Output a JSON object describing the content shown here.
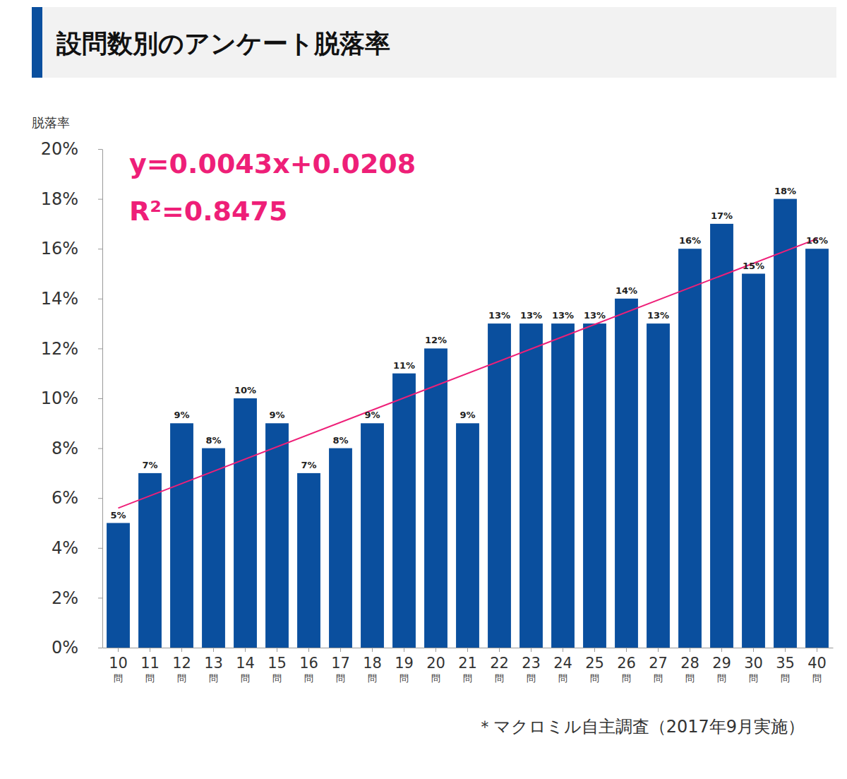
{
  "chart_data": {
    "type": "bar",
    "title": "設問数別のアンケート脱落率",
    "ylabel": "脱落率",
    "categories": [
      "10問",
      "11問",
      "12問",
      "13問",
      "14問",
      "15問",
      "16問",
      "17問",
      "18問",
      "19問",
      "20問",
      "21問",
      "22問",
      "23問",
      "24問",
      "25問",
      "26問",
      "27問",
      "28問",
      "29問",
      "30問",
      "35問",
      "40問"
    ],
    "values": [
      5,
      7,
      9,
      8,
      10,
      9,
      7,
      8,
      9,
      11,
      12,
      9,
      13,
      13,
      13,
      13,
      14,
      13,
      16,
      17,
      15,
      18,
      16
    ],
    "value_labels": [
      "5%",
      "7%",
      "9%",
      "8%",
      "10%",
      "9%",
      "7%",
      "8%",
      "9%",
      "11%",
      "12%",
      "9%",
      "13%",
      "13%",
      "13%",
      "13%",
      "14%",
      "13%",
      "16%",
      "17%",
      "15%",
      "18%",
      "16%"
    ],
    "color": "#0a4f9e",
    "data_labels": true,
    "grid": false,
    "ylim": [
      0,
      20
    ],
    "yticks": [
      {
        "value": 0,
        "label": "0%"
      },
      {
        "value": 2,
        "label": "2%"
      },
      {
        "value": 4,
        "label": "4%"
      },
      {
        "value": 6,
        "label": "6%"
      },
      {
        "value": 8,
        "label": "8%"
      },
      {
        "value": 10,
        "label": "10%"
      },
      {
        "value": 12,
        "label": "12%"
      },
      {
        "value": 14,
        "label": "14%"
      },
      {
        "value": 16,
        "label": "16%"
      },
      {
        "value": 18,
        "label": "18%"
      },
      {
        "value": 20,
        "label": "20%"
      }
    ],
    "trend_line": {
      "categories": [
        "10問",
        "40問"
      ],
      "values": [
        5.6,
        16.4
      ],
      "color": "#ee1f78"
    },
    "annotations": [
      "y=0.0043x+0.0208",
      "R²=0.8475"
    ],
    "source": "＊マクロミル自主調査（2017年9月実施）"
  }
}
